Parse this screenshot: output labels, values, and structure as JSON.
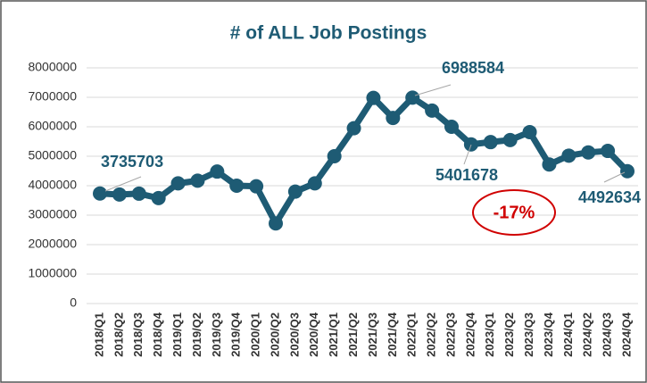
{
  "chart_data": {
    "type": "line",
    "title": "# of ALL Job Postings",
    "categories": [
      "2018/Q1",
      "2018/Q2",
      "2018/Q3",
      "2018/Q4",
      "2019/Q1",
      "2019/Q2",
      "2019/Q3",
      "2019/Q4",
      "2020/Q1",
      "2020/Q2",
      "2020/Q3",
      "2020/Q4",
      "2021/Q1",
      "2021/Q2",
      "2021/Q3",
      "2021/Q4",
      "2022/Q1",
      "2022/Q2",
      "2022/Q3",
      "2022/Q4",
      "2023/Q1",
      "2023/Q2",
      "2023/Q3",
      "2023/Q4",
      "2024/Q1",
      "2024/Q2",
      "2024/Q3",
      "2024/Q4"
    ],
    "series": [
      {
        "name": "# of ALL Job Postings",
        "color": "#1e5b74",
        "values": [
          3735703,
          3700000,
          3730000,
          3580000,
          4080000,
          4170000,
          4480000,
          4000000,
          3980000,
          2720000,
          3800000,
          4080000,
          5000000,
          5950000,
          6980000,
          6300000,
          6988584,
          6550000,
          6000000,
          5401678,
          5480000,
          5550000,
          5820000,
          4720000,
          5020000,
          5130000,
          5180000,
          4492634
        ]
      }
    ],
    "ylim": [
      0,
      8000000
    ],
    "yticks": [
      0,
      1000000,
      2000000,
      3000000,
      4000000,
      5000000,
      6000000,
      7000000,
      8000000
    ],
    "grid": true,
    "annotation": "-17%",
    "annotation_color": "#d00000"
  }
}
